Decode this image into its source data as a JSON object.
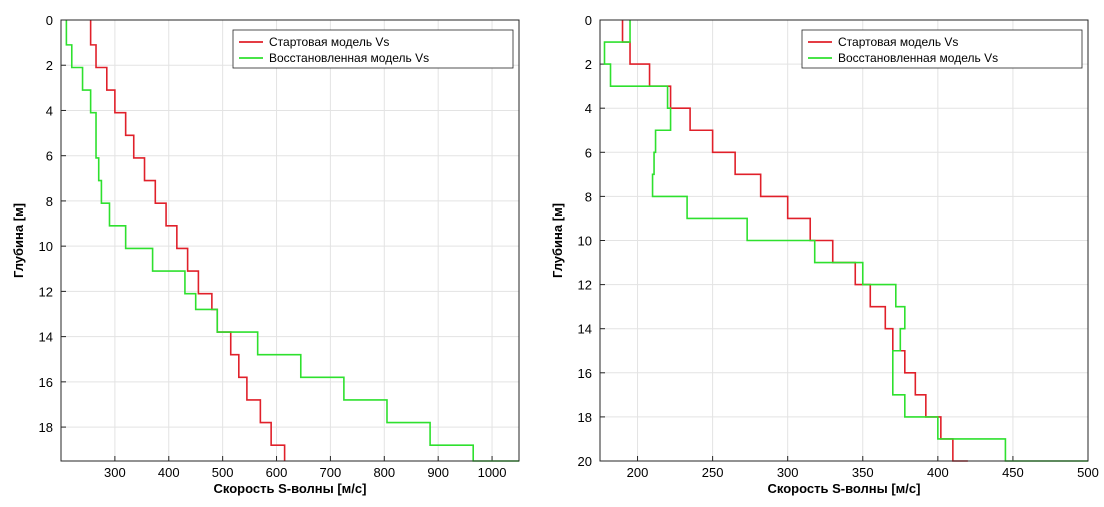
{
  "chart_data": [
    {
      "type": "line",
      "xlabel": "Скорость S-волны [м/с]",
      "ylabel": "Глубина [м]",
      "xlim": [
        200,
        1050
      ],
      "ylim": [
        0,
        19.5
      ],
      "y_inverted": true,
      "xticks": [
        300,
        400,
        500,
        600,
        700,
        800,
        900,
        1000
      ],
      "yticks": [
        0,
        2,
        4,
        6,
        8,
        10,
        12,
        14,
        16,
        18
      ],
      "grid": true,
      "legend_position": "top-right",
      "series": [
        {
          "name": "Стартовая модель Vs",
          "color": "#e0202a",
          "depth_boundaries": [
            0,
            1.1,
            2.1,
            3.1,
            4.1,
            5.1,
            6.1,
            7.1,
            8.1,
            9.1,
            10.1,
            11.1,
            12.1,
            12.8,
            13.8,
            14.8,
            15.8,
            16.8,
            17.8,
            18.8,
            19.5
          ],
          "velocity": [
            255,
            265,
            285,
            300,
            320,
            335,
            355,
            375,
            395,
            415,
            435,
            455,
            480,
            490,
            515,
            530,
            545,
            570,
            590,
            615
          ]
        },
        {
          "name": "Восстановленная модель Vs",
          "color": "#2ee02e",
          "depth_boundaries": [
            0,
            1.1,
            2.1,
            3.1,
            4.1,
            5.1,
            6.1,
            7.1,
            8.1,
            9.1,
            10.1,
            11.1,
            12.1,
            12.8,
            13.8,
            14.8,
            15.8,
            16.8,
            17.8,
            18.8,
            19.5
          ],
          "velocity": [
            210,
            220,
            240,
            255,
            265,
            265,
            270,
            275,
            290,
            320,
            370,
            430,
            450,
            490,
            565,
            645,
            725,
            805,
            885,
            965,
            1050
          ]
        }
      ]
    },
    {
      "type": "line",
      "xlabel": "Скорость S-волны [м/с]",
      "ylabel": "Глубина [м]",
      "xlim": [
        175,
        500
      ],
      "ylim": [
        0,
        20
      ],
      "y_inverted": true,
      "xticks": [
        200,
        250,
        300,
        350,
        400,
        450,
        500
      ],
      "yticks": [
        0,
        2,
        4,
        6,
        8,
        10,
        12,
        14,
        16,
        18,
        20
      ],
      "grid": true,
      "legend_position": "top-right",
      "series": [
        {
          "name": "Стартовая модель Vs",
          "color": "#e0202a",
          "depth_boundaries": [
            0,
            1,
            2,
            3,
            4,
            5,
            6,
            7,
            8,
            9,
            10,
            11,
            12,
            13,
            14,
            15,
            16,
            17,
            18,
            19,
            20
          ],
          "velocity": [
            190,
            195,
            208,
            222,
            235,
            250,
            265,
            282,
            300,
            315,
            330,
            345,
            355,
            365,
            370,
            378,
            385,
            392,
            402,
            410,
            420
          ]
        },
        {
          "name": "Восстановленная модель Vs",
          "color": "#2ee02e",
          "depth_boundaries": [
            0,
            1,
            2,
            3,
            4,
            5,
            6,
            7,
            8,
            9,
            10,
            11,
            12,
            13,
            14,
            15,
            16,
            17,
            18,
            19,
            20
          ],
          "velocity": [
            195,
            178,
            182,
            220,
            222,
            212,
            211,
            210,
            233,
            273,
            318,
            350,
            372,
            378,
            375,
            370,
            370,
            378,
            400,
            445,
            500
          ]
        }
      ]
    }
  ]
}
